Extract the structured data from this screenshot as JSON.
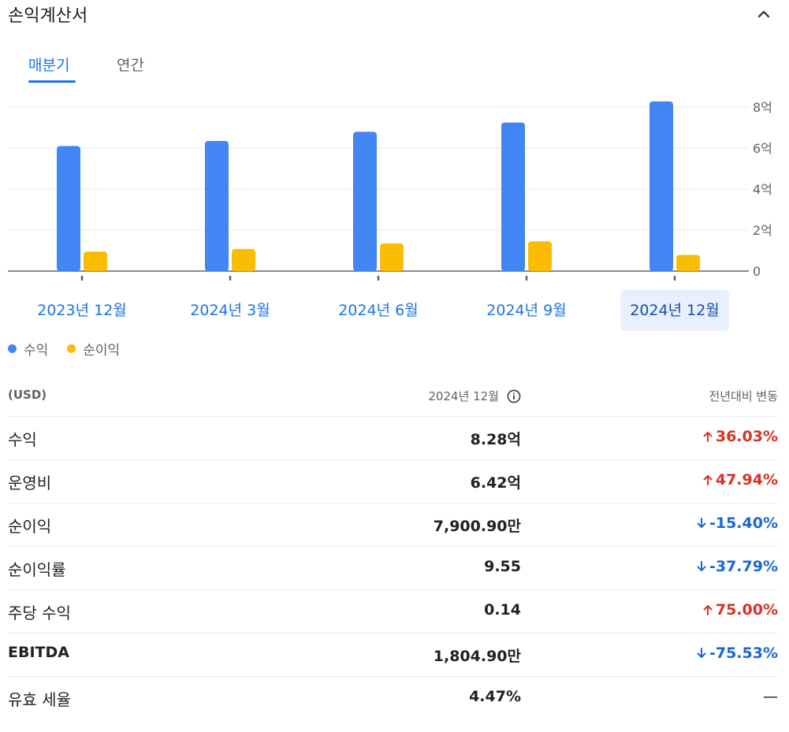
{
  "header": {
    "title": "손익계산서",
    "collapse_icon": "chevron-up-icon"
  },
  "tabs": [
    {
      "label": "매분기",
      "active": true
    },
    {
      "label": "연간",
      "active": false
    }
  ],
  "chart_data": {
    "type": "bar",
    "categories": [
      "2023년 12월",
      "2024년 3월",
      "2024년 6월",
      "2024년 9월",
      "2024년 12월"
    ],
    "selected_category": "2024년 12월",
    "series": [
      {
        "name": "수익",
        "color": "#4285f4",
        "values": [
          6.1,
          6.35,
          6.8,
          7.25,
          8.28
        ]
      },
      {
        "name": "순이익",
        "color": "#fbbc04",
        "values": [
          0.95,
          1.08,
          1.35,
          1.45,
          0.79
        ]
      }
    ],
    "y_unit": "억",
    "ylim": [
      0,
      8
    ],
    "yticks": [
      {
        "value": 0,
        "label": "0"
      },
      {
        "value": 2,
        "label": "2억"
      },
      {
        "value": 4,
        "label": "4억"
      },
      {
        "value": 6,
        "label": "6억"
      },
      {
        "value": 8,
        "label": "8억"
      }
    ],
    "y_axis_side": "right",
    "grid": true,
    "legend_position": "bottom-left"
  },
  "table": {
    "headers": {
      "unit": "(USD)",
      "period": "2024년 12월",
      "change": "전년대비 변동"
    },
    "rows": [
      {
        "name": "수익",
        "value": "8.28억",
        "change": "36.03%",
        "direction": "up"
      },
      {
        "name": "운영비",
        "value": "6.42억",
        "change": "47.94%",
        "direction": "up"
      },
      {
        "name": "순이익",
        "value": "7,900.90만",
        "change": "-15.40%",
        "direction": "down"
      },
      {
        "name": "순이익률",
        "value": "9.55",
        "change": "-37.79%",
        "direction": "down"
      },
      {
        "name": "주당 수익",
        "value": "0.14",
        "change": "75.00%",
        "direction": "up"
      },
      {
        "name": "EBITDA",
        "value": "1,804.90만",
        "change": "-75.53%",
        "direction": "down"
      },
      {
        "name": "유효 세율",
        "value": "4.47%",
        "change": "—",
        "direction": "none"
      }
    ]
  }
}
